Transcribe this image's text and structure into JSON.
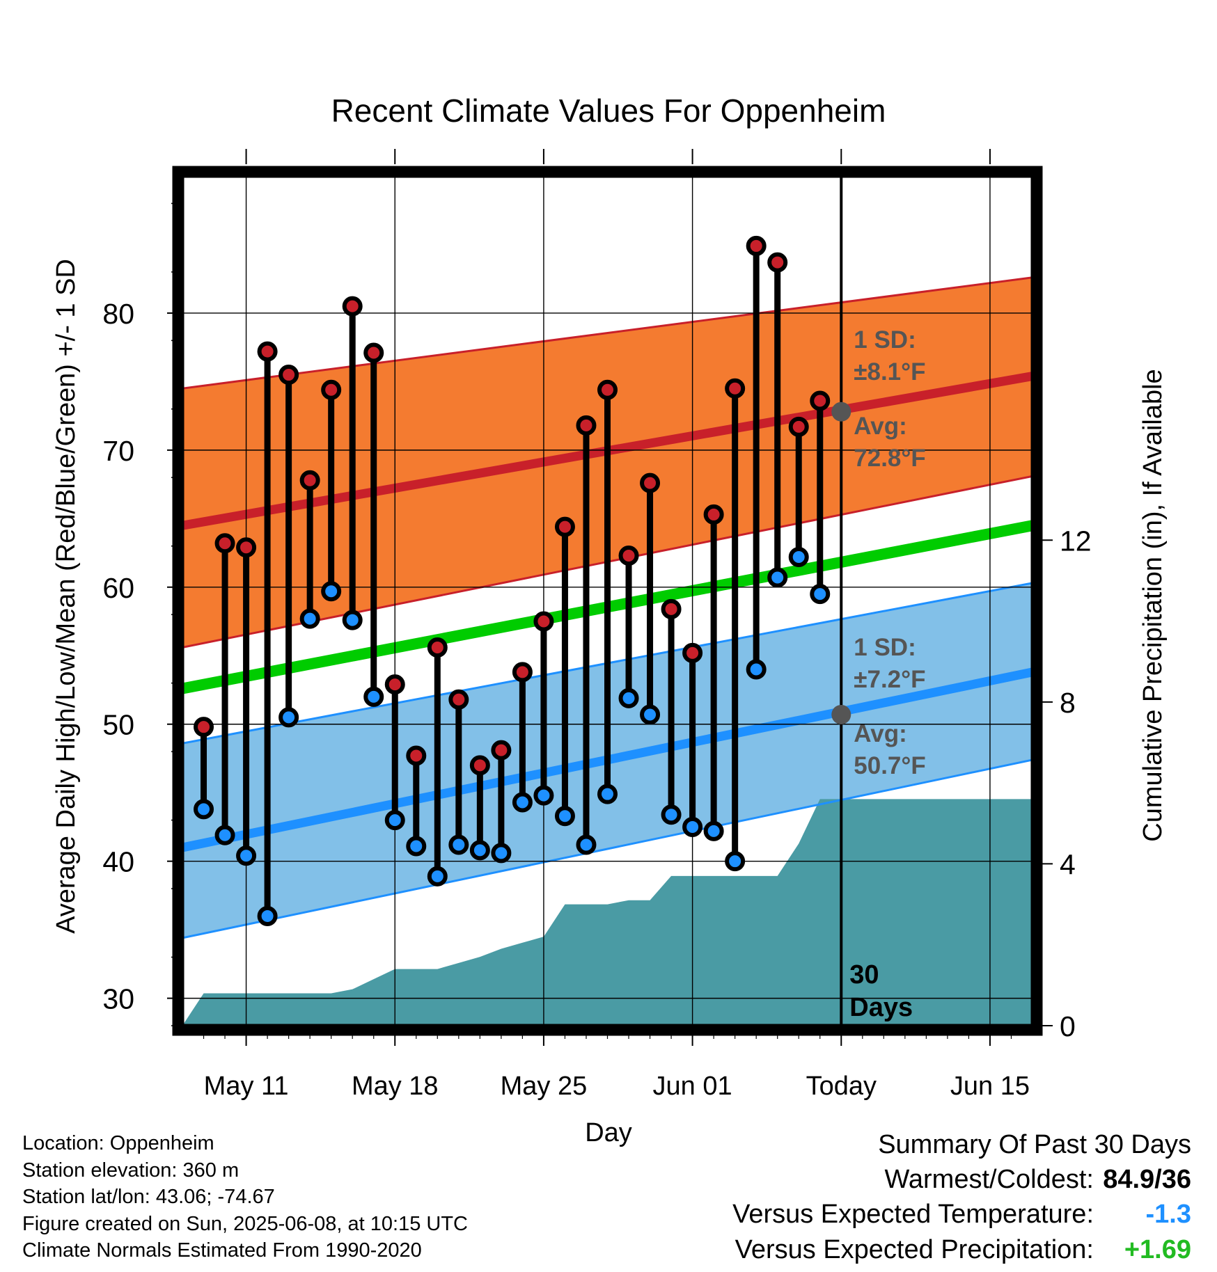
{
  "chart_data": {
    "type": "line",
    "title": "Recent Climate Values For Oppenheim",
    "xlabel": "Day",
    "ylabel": "Average Daily High/Low/Mean (Red/Blue/Green) +/- 1 SD",
    "y2label": "Cumulative Precipitation (in), If Available",
    "x_tick_labels": [
      "May 11",
      "May 18",
      "May 25",
      "Jun 01",
      "Today",
      "Jun 15"
    ],
    "x_tick_days": [
      0,
      7,
      14,
      21,
      28,
      35
    ],
    "x_range_days": [
      -3,
      37
    ],
    "today_day": 28,
    "y_ticks": [
      30,
      40,
      50,
      60,
      70,
      80
    ],
    "y_range": [
      28,
      90
    ],
    "y2_ticks": [
      0,
      4,
      8,
      12
    ],
    "y2_range": [
      0,
      21
    ],
    "today_label": {
      "line1": "30",
      "line2": "Days"
    },
    "observed": {
      "day": [
        -2,
        -1,
        0,
        1,
        2,
        3,
        4,
        5,
        6,
        7,
        8,
        9,
        10,
        11,
        12,
        13,
        14,
        15,
        16,
        17,
        18,
        19,
        20,
        21,
        22,
        23,
        24,
        25,
        26,
        27
      ],
      "high": [
        49.8,
        63.2,
        62.9,
        77.2,
        75.5,
        67.8,
        74.4,
        80.5,
        77.1,
        52.9,
        47.7,
        55.6,
        51.8,
        47.0,
        48.1,
        53.8,
        57.5,
        64.4,
        71.8,
        74.4,
        62.3,
        67.6,
        58.4,
        55.2,
        65.3,
        74.5,
        84.9,
        83.7,
        71.7,
        73.6
      ],
      "low": [
        43.8,
        41.9,
        40.4,
        36.0,
        50.5,
        57.7,
        59.7,
        57.6,
        52.0,
        43.0,
        41.1,
        38.9,
        41.2,
        40.8,
        40.6,
        44.3,
        44.8,
        43.3,
        41.2,
        44.9,
        51.9,
        50.7,
        43.4,
        42.5,
        42.2,
        40.0,
        54.0,
        60.7,
        62.2,
        59.5
      ]
    },
    "normals": {
      "day": [
        -3,
        37
      ],
      "high_avg": [
        64.5,
        75.4
      ],
      "high_upper": [
        74.5,
        82.6
      ],
      "high_lower": [
        55.6,
        68.1
      ],
      "mean": [
        52.6,
        64.5
      ],
      "low_avg": [
        41.0,
        53.8
      ],
      "low_upper": [
        48.6,
        60.3
      ],
      "low_lower": [
        34.4,
        47.4
      ]
    },
    "precip_cumulative": {
      "day": [
        -3,
        -2,
        -1,
        0,
        1,
        2,
        3,
        4,
        5,
        6,
        7,
        8,
        9,
        10,
        11,
        12,
        13,
        14,
        15,
        16,
        17,
        18,
        19,
        20,
        21,
        22,
        23,
        24,
        25,
        26,
        27,
        28,
        37
      ],
      "value": [
        0.0,
        0.8,
        0.8,
        0.8,
        0.8,
        0.8,
        0.8,
        0.8,
        0.9,
        1.15,
        1.4,
        1.4,
        1.4,
        1.55,
        1.7,
        1.9,
        2.05,
        2.2,
        3.0,
        3.0,
        3.0,
        3.1,
        3.1,
        3.7,
        3.7,
        3.7,
        3.7,
        3.7,
        3.7,
        4.5,
        5.6,
        5.6,
        5.6
      ]
    },
    "annotations": {
      "high_sd": {
        "line1": "1 SD:",
        "line2": "±8.1°F",
        "sd_value": 8.1
      },
      "high_avg": {
        "line1": "Avg:",
        "line2": "72.8°F",
        "value": 72.8
      },
      "low_sd": {
        "line1": "1 SD:",
        "line2": "±7.2°F",
        "sd_value": 7.2
      },
      "low_avg": {
        "line1": "Avg:",
        "line2": "50.7°F",
        "value": 50.7
      }
    },
    "colors": {
      "high": "#c8202a",
      "low": "#1e90ff",
      "mean": "#00cc00",
      "high_band": "#f47b30",
      "low_band": "#82c0e8",
      "precip": "#4a9ba4",
      "annotation": "#555555"
    }
  },
  "footer": {
    "location": "Location: Oppenheim",
    "elevation": "Station elevation: 360 m",
    "latlon": "Station lat/lon: 43.06; -74.67",
    "created": "Figure created on Sun, 2025-06-08, at 10:15 UTC",
    "normals": "Climate Normals Estimated From 1990-2020"
  },
  "summary": {
    "title": "Summary Of Past 30 Days",
    "warmest_label": "Warmest/Coldest:",
    "warmest_value": "84.9/36",
    "temp_label": "Versus Expected Temperature:",
    "temp_value": "-1.3",
    "temp_color": "#1e90ff",
    "precip_label": "Versus Expected Precipitation:",
    "precip_value": "+1.69",
    "precip_color": "#22bb22"
  }
}
